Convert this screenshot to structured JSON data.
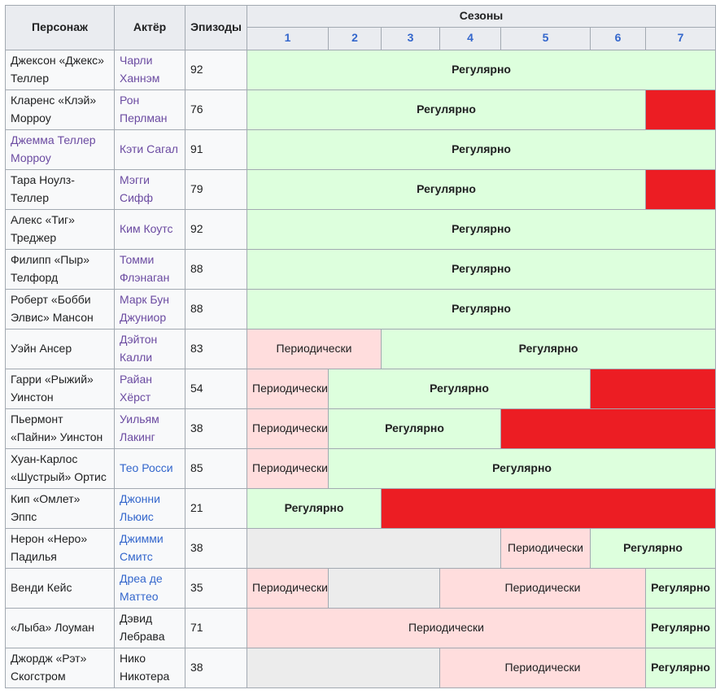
{
  "table": {
    "headers": {
      "character": "Персонаж",
      "actor": "Актёр",
      "episodes": "Эпизоды",
      "seasons": "Сезоны",
      "season_numbers": [
        "1",
        "2",
        "3",
        "4",
        "5",
        "6",
        "7"
      ]
    },
    "labels": {
      "regular": "Регулярно",
      "periodic": "Периодически"
    },
    "colors": {
      "regular": "#ddffdd",
      "periodic": "#ffdddd",
      "red": "#ec1d23",
      "grey": "#ececec",
      "header_bg": "#eaecf0",
      "cell_bg": "#f8f9fa",
      "border": "#a2a9b1",
      "link": "#3366cc",
      "link_visited": "#6b4ba1"
    },
    "rows": [
      {
        "character": "Джексон «Джекс» Теллер",
        "character_style": "plain",
        "actor": "Чарли Ханнэм",
        "actor_style": "visited-link",
        "episodes": "92",
        "seasons": [
          {
            "span": 7,
            "status": "regular"
          }
        ]
      },
      {
        "character": "Кларенс «Клэй» Морроу",
        "character_style": "plain",
        "actor": "Рон Перлман",
        "actor_style": "visited-link",
        "episodes": "76",
        "seasons": [
          {
            "span": 6,
            "status": "regular"
          },
          {
            "span": 1,
            "status": "red"
          }
        ]
      },
      {
        "character": "Джемма Теллер Морроу",
        "character_style": "visited-link",
        "actor": "Кэти Сагал",
        "actor_style": "visited-link",
        "episodes": "91",
        "seasons": [
          {
            "span": 7,
            "status": "regular"
          }
        ]
      },
      {
        "character": "Тара Ноулз-Теллер",
        "character_style": "plain",
        "actor": "Мэгги Сифф",
        "actor_style": "visited-link",
        "episodes": "79",
        "seasons": [
          {
            "span": 6,
            "status": "regular"
          },
          {
            "span": 1,
            "status": "red"
          }
        ]
      },
      {
        "character": "Алекс «Тиг» Треджер",
        "character_style": "plain",
        "actor": "Ким Коутс",
        "actor_style": "visited-link",
        "episodes": "92",
        "seasons": [
          {
            "span": 7,
            "status": "regular"
          }
        ]
      },
      {
        "character": "Филипп «Пыр» Телфорд",
        "character_style": "plain",
        "actor": "Томми Флэнаган",
        "actor_style": "visited-link",
        "episodes": "88",
        "seasons": [
          {
            "span": 7,
            "status": "regular"
          }
        ]
      },
      {
        "character": "Роберт «Бобби Элвис» Мансон",
        "character_style": "plain",
        "actor": "Марк Бун Джуниор",
        "actor_style": "visited-link",
        "episodes": "88",
        "seasons": [
          {
            "span": 7,
            "status": "regular"
          }
        ]
      },
      {
        "character": "Уэйн Ансер",
        "character_style": "plain",
        "actor": "Дэйтон Калли",
        "actor_style": "visited-link",
        "episodes": "83",
        "seasons": [
          {
            "span": 2,
            "status": "periodic"
          },
          {
            "span": 5,
            "status": "regular"
          }
        ]
      },
      {
        "character": "Гарри «Рыжий» Уинстон",
        "character_style": "plain",
        "actor": "Райан Хёрст",
        "actor_style": "visited-link",
        "episodes": "54",
        "seasons": [
          {
            "span": 1,
            "status": "periodic"
          },
          {
            "span": 4,
            "status": "regular"
          },
          {
            "span": 2,
            "status": "red"
          }
        ]
      },
      {
        "character": "Пьермонт «Пайни» Уинстон",
        "character_style": "plain",
        "actor": "Уильям Лакинг",
        "actor_style": "visited-link",
        "episodes": "38",
        "seasons": [
          {
            "span": 1,
            "status": "periodic"
          },
          {
            "span": 3,
            "status": "regular"
          },
          {
            "span": 3,
            "status": "red"
          }
        ]
      },
      {
        "character": "Хуан-Карлос «Шустрый» Ортис",
        "character_style": "plain",
        "actor": "Тео Росси",
        "actor_style": "link",
        "episodes": "85",
        "seasons": [
          {
            "span": 1,
            "status": "periodic"
          },
          {
            "span": 6,
            "status": "regular"
          }
        ]
      },
      {
        "character": "Кип «Омлет» Эппс",
        "character_style": "plain",
        "actor": "Джонни Льюис",
        "actor_style": "link",
        "episodes": "21",
        "seasons": [
          {
            "span": 2,
            "status": "regular"
          },
          {
            "span": 5,
            "status": "red"
          }
        ]
      },
      {
        "character": "Нерон «Неро» Падилья",
        "character_style": "plain",
        "actor": "Джимми Смитс",
        "actor_style": "link",
        "episodes": "38",
        "seasons": [
          {
            "span": 4,
            "status": "grey"
          },
          {
            "span": 1,
            "status": "periodic"
          },
          {
            "span": 2,
            "status": "regular"
          }
        ]
      },
      {
        "character": "Венди Кейс",
        "character_style": "plain",
        "actor": "Дреа де Маттео",
        "actor_style": "link",
        "episodes": "35",
        "seasons": [
          {
            "span": 1,
            "status": "periodic"
          },
          {
            "span": 2,
            "status": "grey"
          },
          {
            "span": 3,
            "status": "periodic"
          },
          {
            "span": 1,
            "status": "regular"
          }
        ]
      },
      {
        "character": "«Лыба» Лоуман",
        "character_style": "plain",
        "actor": "Дэвид Лебрава",
        "actor_style": "plain",
        "episodes": "71",
        "seasons": [
          {
            "span": 6,
            "status": "periodic"
          },
          {
            "span": 1,
            "status": "regular"
          }
        ]
      },
      {
        "character": "Джордж «Рэт» Скогстром",
        "character_style": "plain",
        "actor": "Нико Никотера",
        "actor_style": "plain",
        "episodes": "38",
        "seasons": [
          {
            "span": 3,
            "status": "grey"
          },
          {
            "span": 3,
            "status": "periodic"
          },
          {
            "span": 1,
            "status": "regular"
          }
        ]
      }
    ]
  }
}
